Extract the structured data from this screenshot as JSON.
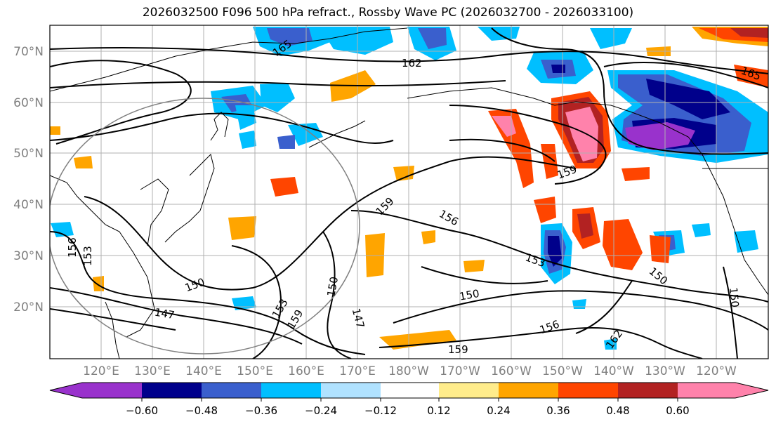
{
  "title": "2026032500 F096 500 hPa refract., Rossby Wave PC (2026032700 - 2026033100)",
  "lat_labels": [
    "70°N",
    "60°N",
    "50°N",
    "40°N",
    "30°N",
    "20°N"
  ],
  "lon_labels": [
    "120°E",
    "130°E",
    "140°E",
    "150°E",
    "160°E",
    "170°E",
    "180°W",
    "170°W",
    "160°W",
    "150°W",
    "140°W",
    "130°W",
    "120°W"
  ],
  "contour_labels": [
    "165",
    "162",
    "165",
    "159",
    "159",
    "156",
    "153",
    "156",
    "153",
    "150",
    "147",
    "153",
    "159",
    "150",
    "147",
    "150",
    "156",
    "159",
    "162",
    "150",
    "150"
  ],
  "colorbar": {
    "colors": [
      "#9932cc",
      "#00008b",
      "#3a5fcd",
      "#00bfff",
      "#b0e2ff",
      "#ffffff",
      "#ffec8b",
      "#ffa500",
      "#ff4500",
      "#b22222",
      "#ff82ab"
    ],
    "ticks": [
      "−0.60",
      "−0.48",
      "−0.36",
      "−0.24",
      "−0.12",
      "0.12",
      "0.24",
      "0.36",
      "0.48",
      "0.60"
    ]
  }
}
